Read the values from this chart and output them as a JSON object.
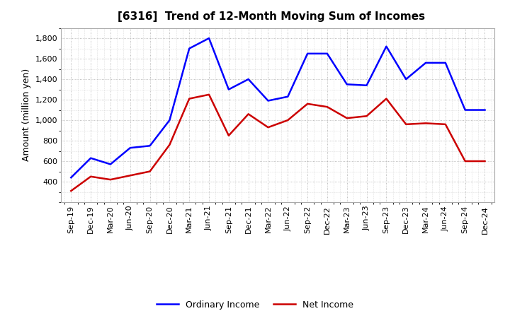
{
  "title": "[6316]  Trend of 12-Month Moving Sum of Incomes",
  "ylabel": "Amount (million yen)",
  "x_labels": [
    "Sep-19",
    "Dec-19",
    "Mar-20",
    "Jun-20",
    "Sep-20",
    "Dec-20",
    "Mar-21",
    "Jun-21",
    "Sep-21",
    "Dec-21",
    "Mar-22",
    "Jun-22",
    "Sep-22",
    "Dec-22",
    "Mar-23",
    "Jun-23",
    "Sep-23",
    "Dec-23",
    "Mar-24",
    "Jun-24",
    "Sep-24",
    "Dec-24"
  ],
  "ordinary_income": [
    440,
    630,
    570,
    730,
    750,
    1000,
    1700,
    1800,
    1300,
    1400,
    1190,
    1230,
    1650,
    1650,
    1350,
    1340,
    1720,
    1400,
    1560,
    1560,
    1100,
    1100
  ],
  "net_income": [
    310,
    450,
    420,
    460,
    500,
    760,
    1210,
    1250,
    850,
    1060,
    930,
    1000,
    1160,
    1130,
    1020,
    1040,
    1210,
    960,
    970,
    960,
    600,
    600
  ],
  "ordinary_color": "#0000FF",
  "net_color": "#CC0000",
  "ylim": [
    200,
    1900
  ],
  "yticks": [
    400,
    600,
    800,
    1000,
    1200,
    1400,
    1600,
    1800
  ],
  "bg_color": "#FFFFFF",
  "plot_bg_color": "#FFFFFF",
  "grid_color": "#AAAAAA",
  "title_fontsize": 11,
  "axis_label_fontsize": 9,
  "tick_fontsize": 8,
  "legend_fontsize": 9,
  "line_width": 1.8
}
